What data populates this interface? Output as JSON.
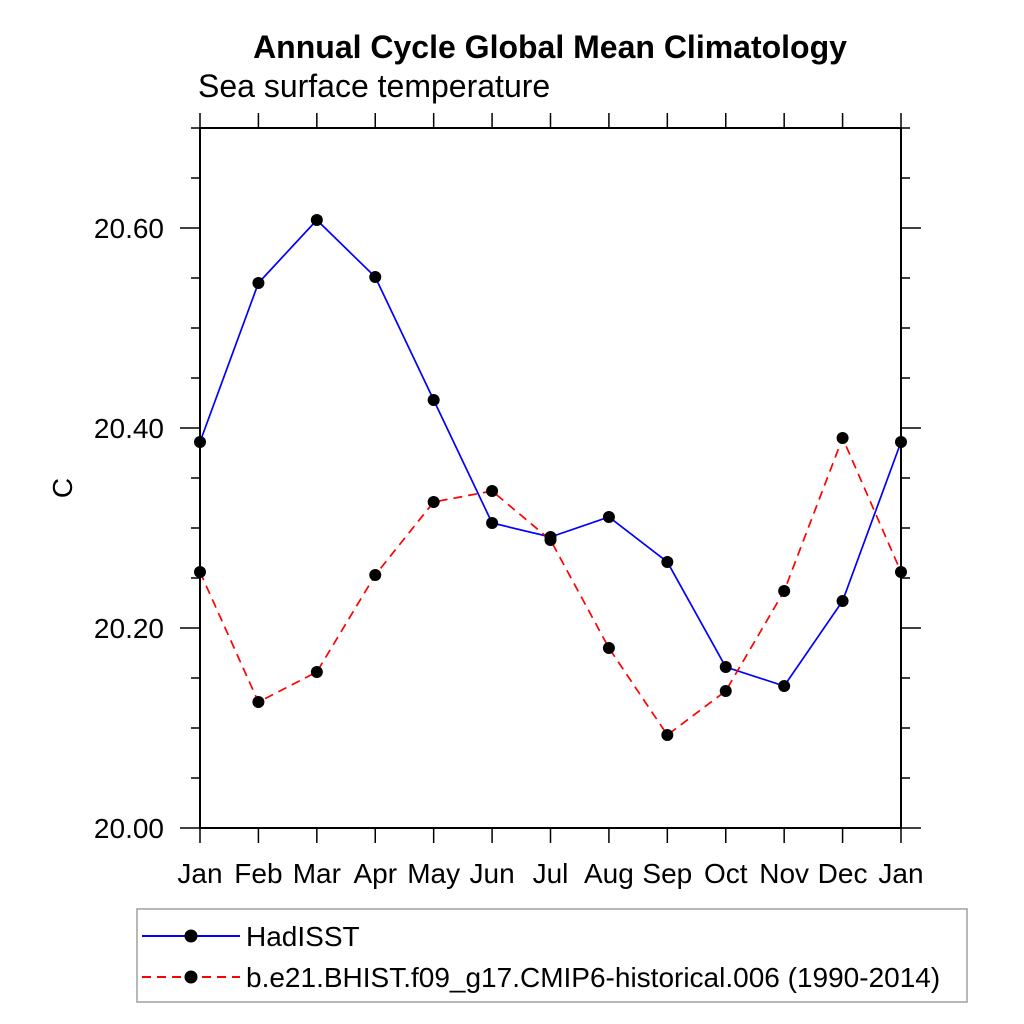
{
  "chart_data": {
    "type": "line",
    "title": "Annual Cycle Global Mean Climatology",
    "subtitle": "Sea surface temperature",
    "xlabel": "",
    "ylabel": "C",
    "x_tick_labels": [
      "Jan",
      "Feb",
      "Mar",
      "Apr",
      "May",
      "Jun",
      "Jul",
      "Aug",
      "Sep",
      "Oct",
      "Nov",
      "Dec",
      "Jan"
    ],
    "y_tick_labels": [
      "20.00",
      "20.20",
      "20.40",
      "20.60"
    ],
    "y_major_tick_values": [
      20.0,
      20.2,
      20.4,
      20.6
    ],
    "y_minor_step": 0.05,
    "ylim": [
      20.0,
      20.7
    ],
    "grid": false,
    "legend_position": "bottom-left",
    "axis_color": "#000000",
    "marker_color": "#000000",
    "marker_shape": "filled-circle",
    "series": [
      {
        "name": "HadISST",
        "color": "#0000ff",
        "style": "solid",
        "values": [
          20.386,
          20.545,
          20.608,
          20.551,
          20.428,
          20.305,
          20.291,
          20.311,
          20.266,
          20.161,
          20.142,
          20.227,
          20.386
        ]
      },
      {
        "name": "b.e21.BHIST.f09_g17.CMIP6-historical.006 (1990-2014)",
        "color": "#ff0000",
        "style": "dashed",
        "values": [
          20.256,
          20.126,
          20.156,
          20.253,
          20.326,
          20.337,
          20.288,
          20.18,
          20.093,
          20.137,
          20.237,
          20.39,
          20.256
        ]
      }
    ]
  }
}
